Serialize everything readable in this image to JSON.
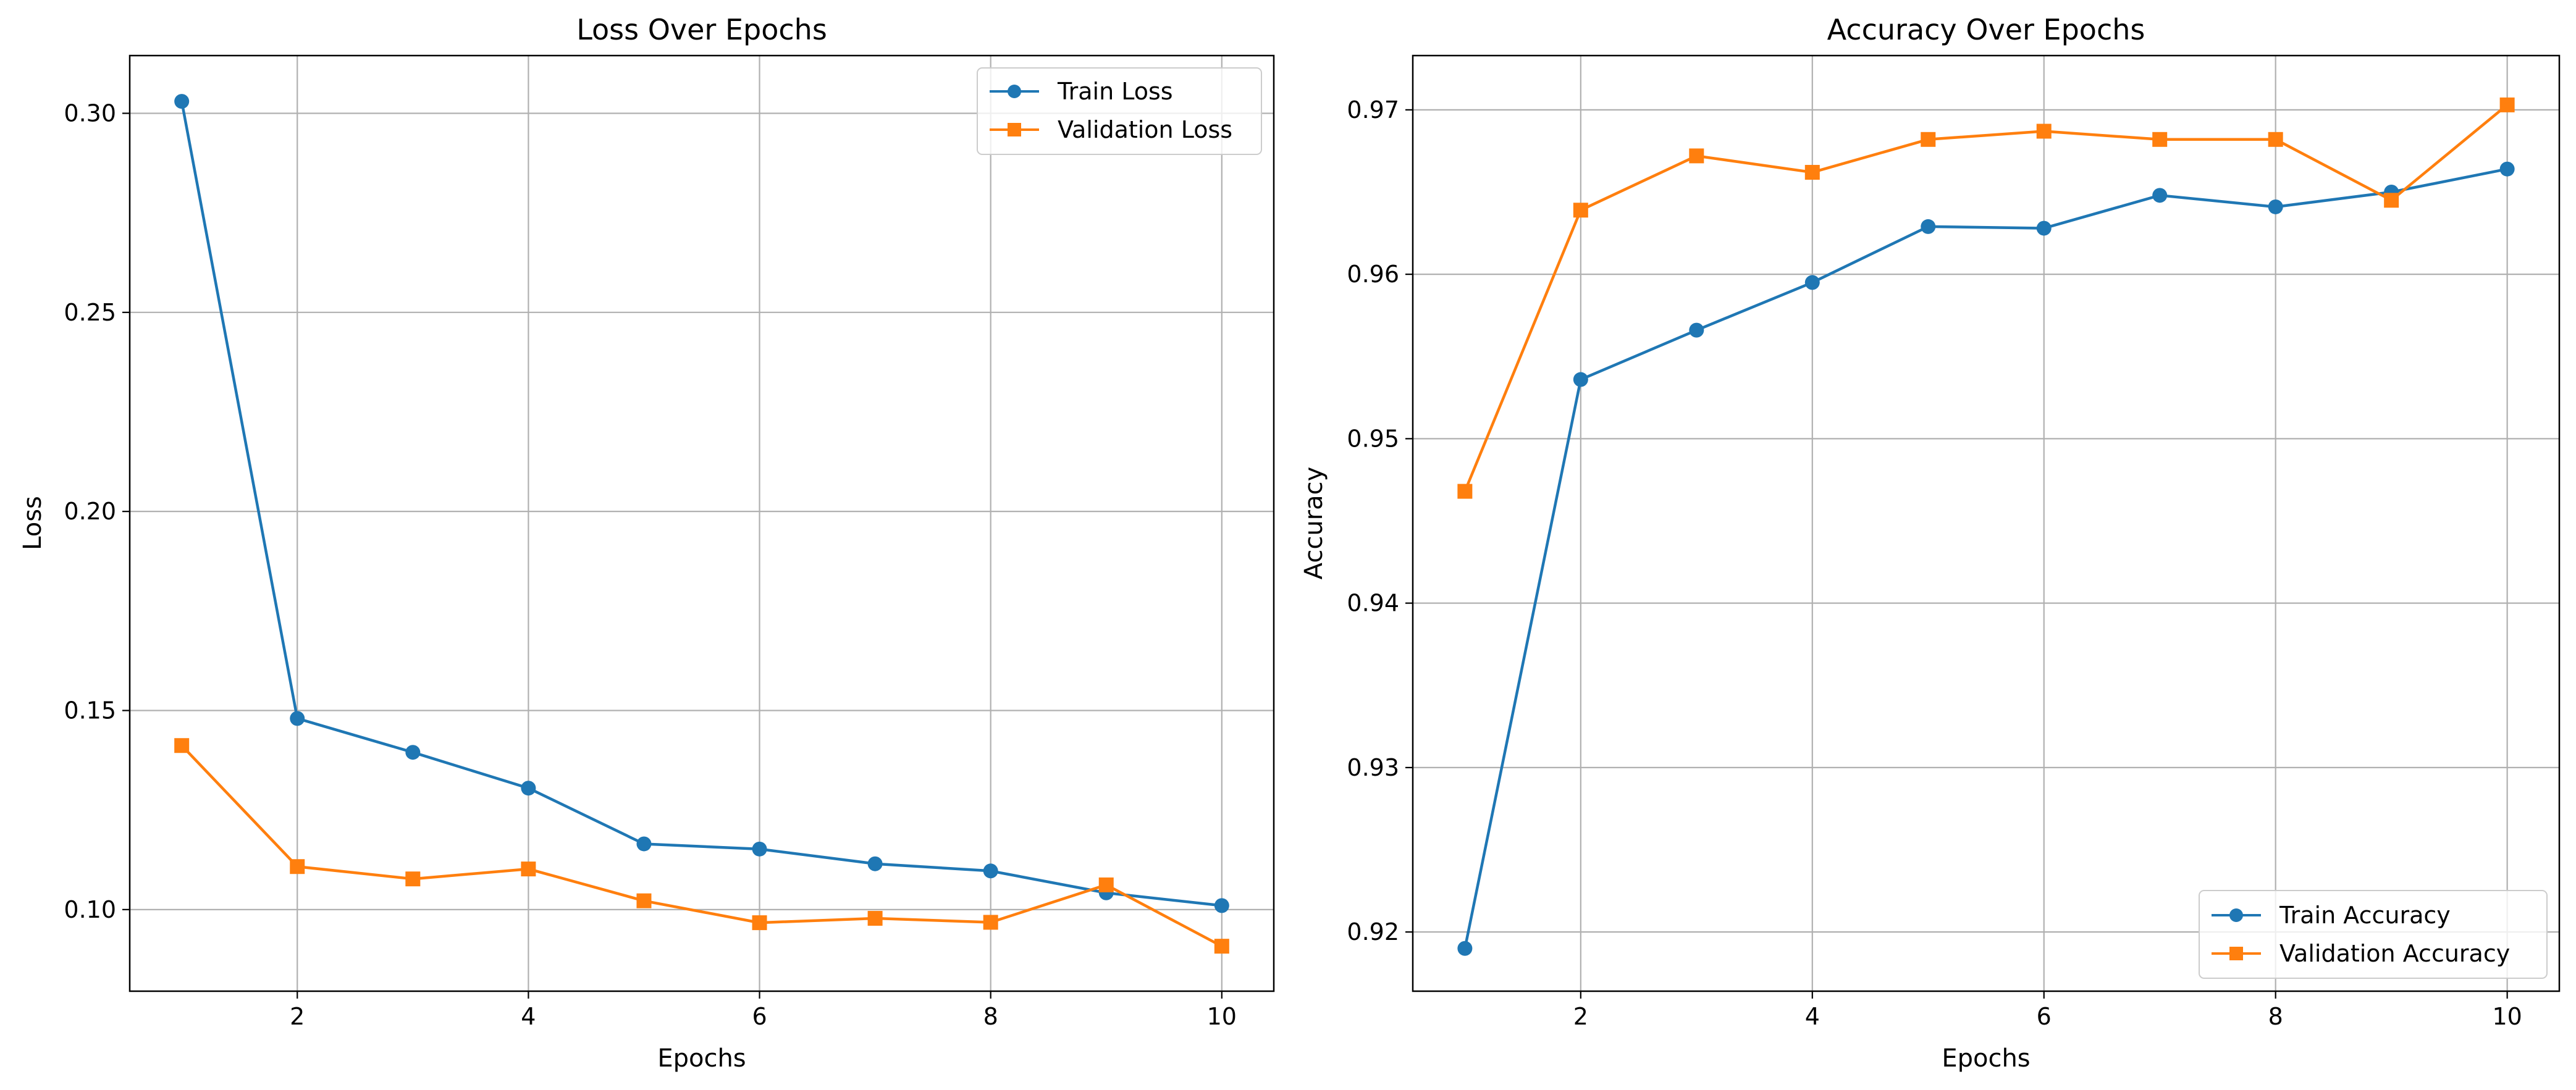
{
  "chart_data": [
    {
      "type": "line",
      "title": "Loss Over Epochs",
      "xlabel": "Epochs",
      "ylabel": "Loss",
      "x": [
        1,
        2,
        3,
        4,
        5,
        6,
        7,
        8,
        9,
        10
      ],
      "xlim": [
        0.55,
        10.45
      ],
      "ylim": [
        0.0795,
        0.3145
      ],
      "xticks": [
        2,
        4,
        6,
        8,
        10
      ],
      "xtick_labels": [
        "2",
        "4",
        "6",
        "8",
        "10"
      ],
      "yticks": [
        0.1,
        0.15,
        0.2,
        0.25,
        0.3
      ],
      "ytick_labels": [
        "0.10",
        "0.15",
        "0.20",
        "0.25",
        "0.30"
      ],
      "grid": true,
      "legend_position": "top-right",
      "series": [
        {
          "name": "Train Loss",
          "color": "#1f77b4",
          "marker": "circle",
          "values": [
            0.303,
            0.148,
            0.1395,
            0.1305,
            0.1165,
            0.1152,
            0.1115,
            0.1097,
            0.1042,
            0.101
          ]
        },
        {
          "name": "Validation Loss",
          "color": "#ff7f0e",
          "marker": "square",
          "values": [
            0.1412,
            0.1108,
            0.1077,
            0.1102,
            0.1022,
            0.0967,
            0.0978,
            0.0968,
            0.1062,
            0.0908
          ]
        }
      ]
    },
    {
      "type": "line",
      "title": "Accuracy Over Epochs",
      "xlabel": "Epochs",
      "ylabel": "Accuracy",
      "x": [
        1,
        2,
        3,
        4,
        5,
        6,
        7,
        8,
        9,
        10
      ],
      "xlim": [
        0.55,
        10.45
      ],
      "ylim": [
        0.9164,
        0.9733
      ],
      "xticks": [
        2,
        4,
        6,
        8,
        10
      ],
      "xtick_labels": [
        "2",
        "4",
        "6",
        "8",
        "10"
      ],
      "yticks": [
        0.92,
        0.93,
        0.94,
        0.95,
        0.96,
        0.97
      ],
      "ytick_labels": [
        "0.92",
        "0.93",
        "0.94",
        "0.95",
        "0.96",
        "0.97"
      ],
      "grid": true,
      "legend_position": "bottom-right",
      "series": [
        {
          "name": "Train Accuracy",
          "color": "#1f77b4",
          "marker": "circle",
          "values": [
            0.919,
            0.9536,
            0.9566,
            0.9595,
            0.9629,
            0.9628,
            0.9648,
            0.9641,
            0.965,
            0.9664
          ]
        },
        {
          "name": "Validation Accuracy",
          "color": "#ff7f0e",
          "marker": "square",
          "values": [
            0.9468,
            0.9639,
            0.9672,
            0.9662,
            0.9682,
            0.9687,
            0.9682,
            0.9682,
            0.9645,
            0.9703
          ]
        }
      ]
    }
  ]
}
